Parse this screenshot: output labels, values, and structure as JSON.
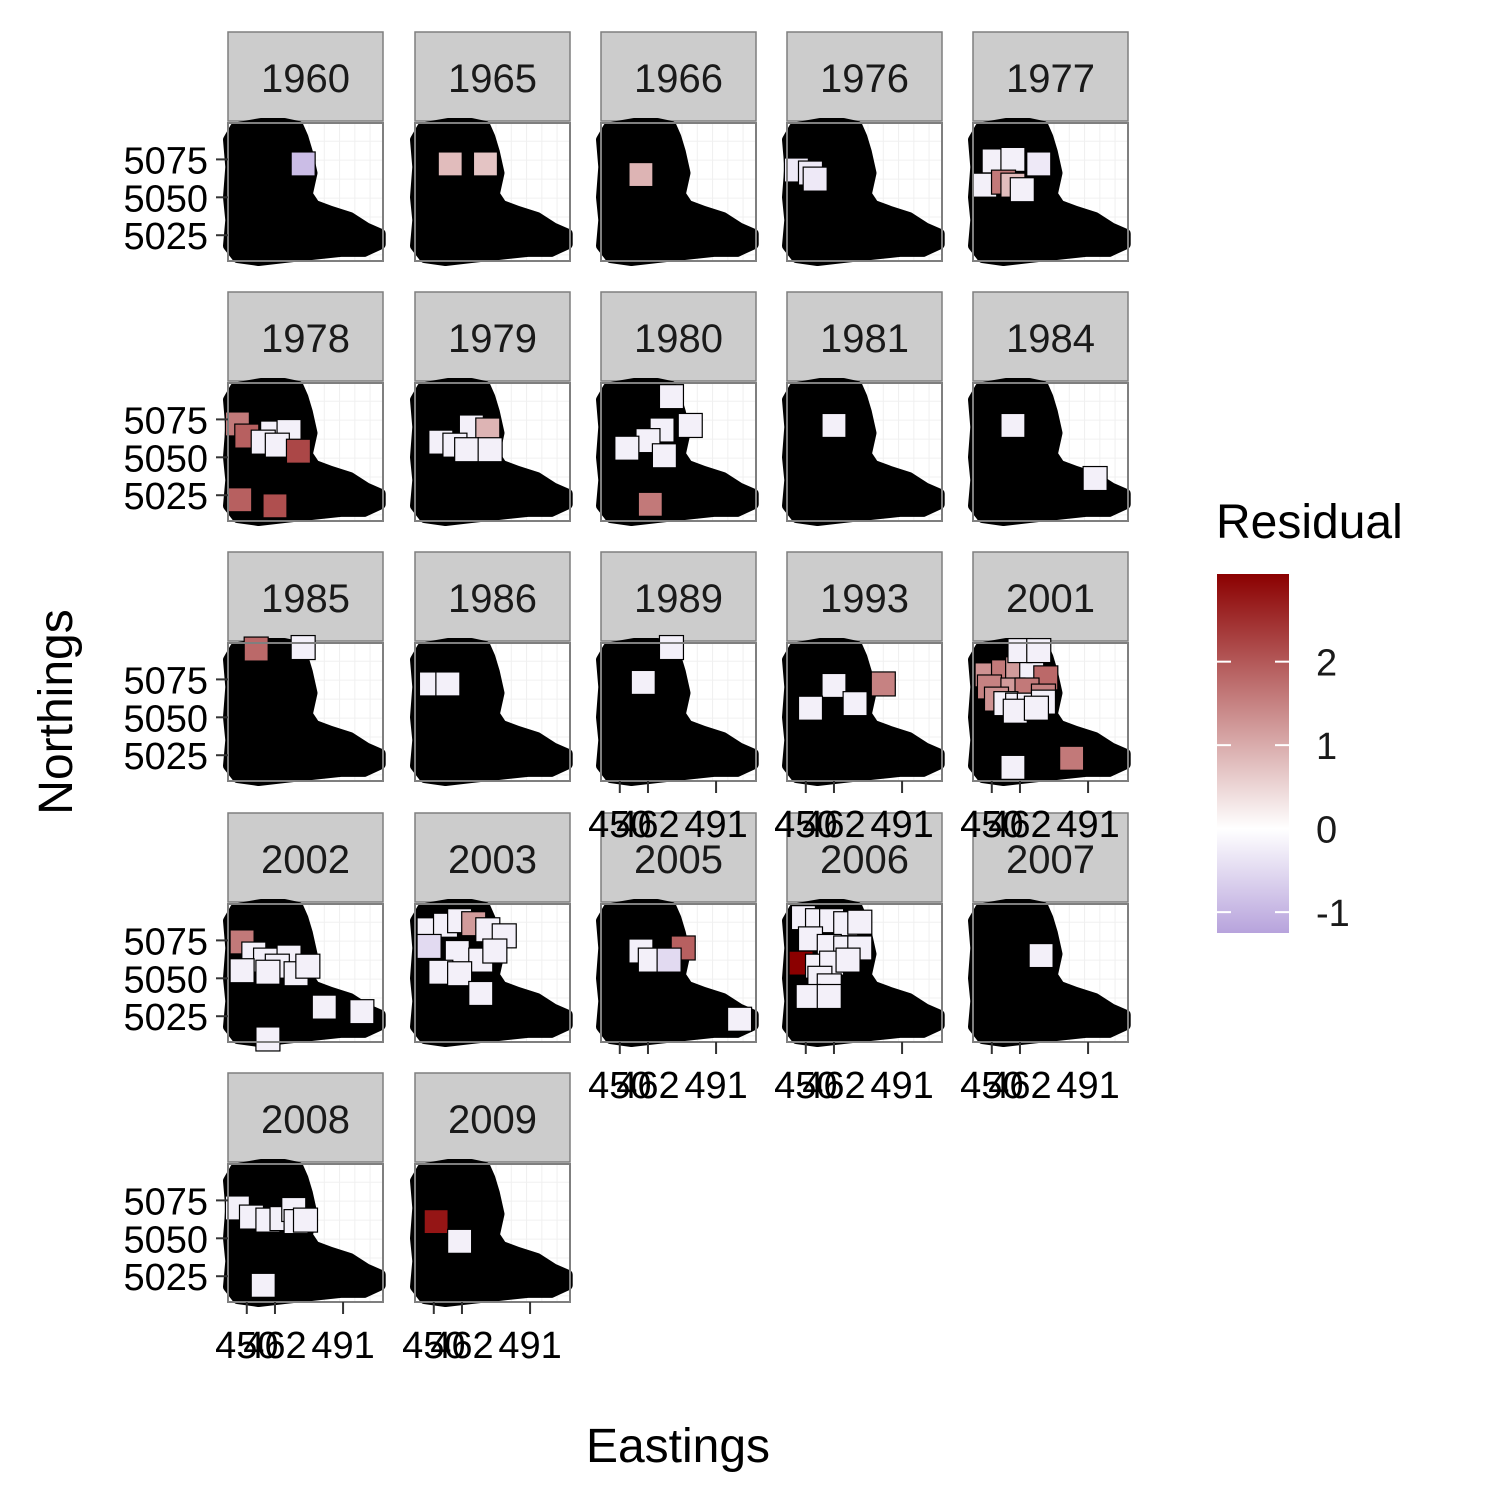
{
  "chart_data": {
    "type": "scatter",
    "title": "",
    "xlabel": "Eastings",
    "ylabel": "Northings",
    "x_ticks": [
      "450",
      "462",
      "491"
    ],
    "y_ticks": [
      "5075",
      "5050",
      "5025"
    ],
    "legend": {
      "title": "Residual",
      "position": "right",
      "min": -1.25,
      "max": 3.05,
      "ticks": [
        "2",
        "1",
        "0",
        "-1"
      ],
      "colors": {
        "low": "#b7a3dc",
        "mid": "#ffffff",
        "high": "#8b0000"
      }
    },
    "grid": true,
    "panels": [
      {
        "year": "1960",
        "points": [
          [
            474,
            5072,
            -0.9
          ]
        ]
      },
      {
        "year": "1965",
        "points": [
          [
            457,
            5072,
            0.8
          ],
          [
            472,
            5072,
            0.7
          ]
        ]
      },
      {
        "year": "1966",
        "points": [
          [
            459,
            5065,
            0.9
          ]
        ]
      },
      {
        "year": "1976",
        "points": [
          [
            446,
            5068,
            -0.3
          ],
          [
            452,
            5066,
            -0.3
          ],
          [
            454,
            5062,
            -0.3
          ]
        ]
      },
      {
        "year": "1977",
        "points": [
          [
            451,
            5074,
            -0.2
          ],
          [
            459,
            5075,
            -0.2
          ],
          [
            470,
            5072,
            -0.3
          ],
          [
            447,
            5058,
            -0.2
          ],
          [
            455,
            5060,
            1.6
          ],
          [
            459,
            5058,
            0.8
          ],
          [
            463,
            5055,
            -0.2
          ]
        ]
      },
      {
        "year": "1978",
        "points": [
          [
            446,
            5072,
            1.6
          ],
          [
            450,
            5064,
            1.9
          ],
          [
            461,
            5066,
            -0.2
          ],
          [
            468,
            5067,
            -0.2
          ],
          [
            457,
            5060,
            -0.2
          ],
          [
            463,
            5058,
            -0.2
          ],
          [
            472,
            5054,
            2.2
          ],
          [
            447,
            5022,
            1.9
          ],
          [
            462,
            5018,
            2.1
          ]
        ]
      },
      {
        "year": "1979",
        "points": [
          [
            466,
            5070,
            -0.2
          ],
          [
            473,
            5068,
            0.9
          ],
          [
            453,
            5060,
            -0.2
          ],
          [
            459,
            5058,
            -0.2
          ],
          [
            464,
            5055,
            -0.2
          ],
          [
            474,
            5055,
            -0.2
          ]
        ]
      },
      {
        "year": "1980",
        "points": [
          [
            472,
            5090,
            -0.2
          ],
          [
            480,
            5071,
            -0.2
          ],
          [
            468,
            5068,
            -0.2
          ],
          [
            462,
            5061,
            -0.2
          ],
          [
            453,
            5056,
            -0.2
          ],
          [
            469,
            5051,
            -0.2
          ],
          [
            463,
            5019,
            1.6
          ]
        ]
      },
      {
        "year": "1981",
        "points": [
          [
            462,
            5071,
            -0.2
          ]
        ]
      },
      {
        "year": "1984",
        "points": [
          [
            459,
            5071,
            -0.2
          ],
          [
            494,
            5036,
            -0.2
          ]
        ]
      },
      {
        "year": "1985",
        "points": [
          [
            454,
            5095,
            1.8
          ],
          [
            474,
            5096,
            -0.2
          ]
        ]
      },
      {
        "year": "1986",
        "points": [
          [
            449,
            5072,
            -0.2
          ],
          [
            456,
            5072,
            -0.2
          ]
        ]
      },
      {
        "year": "1989",
        "points": [
          [
            472,
            5096,
            -0.2
          ],
          [
            460,
            5073,
            -0.2
          ]
        ]
      },
      {
        "year": "1993",
        "points": [
          [
            483,
            5072,
            1.5
          ],
          [
            462,
            5071,
            -0.2
          ],
          [
            452,
            5056,
            -0.2
          ],
          [
            471,
            5059,
            -0.2
          ]
        ]
      },
      {
        "year": "2001",
        "points": [
          [
            448,
            5078,
            1.3
          ],
          [
            455,
            5080,
            1.6
          ],
          [
            461,
            5082,
            1.2
          ],
          [
            467,
            5083,
            -0.2
          ],
          [
            473,
            5076,
            1.8
          ],
          [
            449,
            5070,
            1.5
          ],
          [
            459,
            5068,
            1.2
          ],
          [
            465,
            5068,
            1.6
          ],
          [
            472,
            5064,
            1.5
          ],
          [
            452,
            5062,
            1.3
          ],
          [
            456,
            5059,
            -0.2
          ],
          [
            461,
            5058,
            -0.2
          ],
          [
            466,
            5058,
            -0.2
          ],
          [
            472,
            5060,
            -0.2
          ],
          [
            460,
            5054,
            -0.2
          ],
          [
            469,
            5056,
            -0.2
          ],
          [
            462,
            5094,
            -0.2
          ],
          [
            470,
            5094,
            -0.2
          ],
          [
            459,
            5017,
            -0.2
          ],
          [
            484,
            5023,
            1.6
          ]
        ]
      },
      {
        "year": "2002",
        "points": [
          [
            448,
            5074,
            1.6
          ],
          [
            453,
            5066,
            -0.2
          ],
          [
            458,
            5062,
            -0.2
          ],
          [
            468,
            5064,
            -0.2
          ],
          [
            463,
            5058,
            -0.2
          ],
          [
            448,
            5055,
            -0.2
          ],
          [
            459,
            5054,
            -0.2
          ],
          [
            471,
            5053,
            -0.2
          ],
          [
            476,
            5058,
            -0.2
          ],
          [
            483,
            5031,
            -0.2
          ],
          [
            499,
            5028,
            -0.2
          ],
          [
            459,
            5010,
            -0.2
          ]
        ]
      },
      {
        "year": "2003",
        "points": [
          [
            448,
            5082,
            -0.2
          ],
          [
            455,
            5085,
            -0.2
          ],
          [
            461,
            5088,
            -0.2
          ],
          [
            467,
            5086,
            1.2
          ],
          [
            473,
            5082,
            -0.2
          ],
          [
            480,
            5078,
            -0.2
          ],
          [
            448,
            5071,
            -0.5
          ],
          [
            460,
            5067,
            -0.2
          ],
          [
            470,
            5062,
            -0.2
          ],
          [
            453,
            5054,
            -0.2
          ],
          [
            461,
            5053,
            -0.2
          ],
          [
            476,
            5068,
            -0.2
          ],
          [
            470,
            5040,
            -0.2
          ]
        ]
      },
      {
        "year": "2005",
        "points": [
          [
            459,
            5068,
            -0.2
          ],
          [
            463,
            5062,
            -0.2
          ],
          [
            477,
            5070,
            1.9
          ],
          [
            471,
            5062,
            -0.5
          ],
          [
            501,
            5023,
            -0.2
          ]
        ]
      },
      {
        "year": "2006",
        "points": [
          [
            449,
            5090,
            -0.2
          ],
          [
            455,
            5088,
            -0.2
          ],
          [
            461,
            5088,
            -0.2
          ],
          [
            467,
            5086,
            -0.2
          ],
          [
            473,
            5087,
            -0.2
          ],
          [
            452,
            5076,
            -0.2
          ],
          [
            460,
            5071,
            -0.2
          ],
          [
            467,
            5070,
            -0.2
          ],
          [
            473,
            5070,
            -0.2
          ],
          [
            448,
            5060,
            3.05
          ],
          [
            455,
            5058,
            -0.2
          ],
          [
            461,
            5060,
            -0.2
          ],
          [
            468,
            5062,
            -0.2
          ],
          [
            456,
            5050,
            -0.2
          ],
          [
            460,
            5045,
            -0.2
          ],
          [
            451,
            5038,
            -0.2
          ],
          [
            460,
            5038,
            -0.2
          ]
        ]
      },
      {
        "year": "2007",
        "points": [
          [
            471,
            5065,
            -0.2
          ]
        ]
      },
      {
        "year": "2008",
        "points": [
          [
            446,
            5070,
            -0.2
          ],
          [
            452,
            5064,
            -0.2
          ],
          [
            459,
            5062,
            -0.2
          ],
          [
            465,
            5063,
            -0.2
          ],
          [
            470,
            5069,
            -0.2
          ],
          [
            471,
            5061,
            -0.2
          ],
          [
            475,
            5062,
            -0.2
          ],
          [
            457,
            5019,
            -0.2
          ]
        ]
      },
      {
        "year": "2009",
        "points": [
          [
            451,
            5061,
            2.8
          ],
          [
            461,
            5048,
            -0.2
          ]
        ]
      }
    ]
  }
}
